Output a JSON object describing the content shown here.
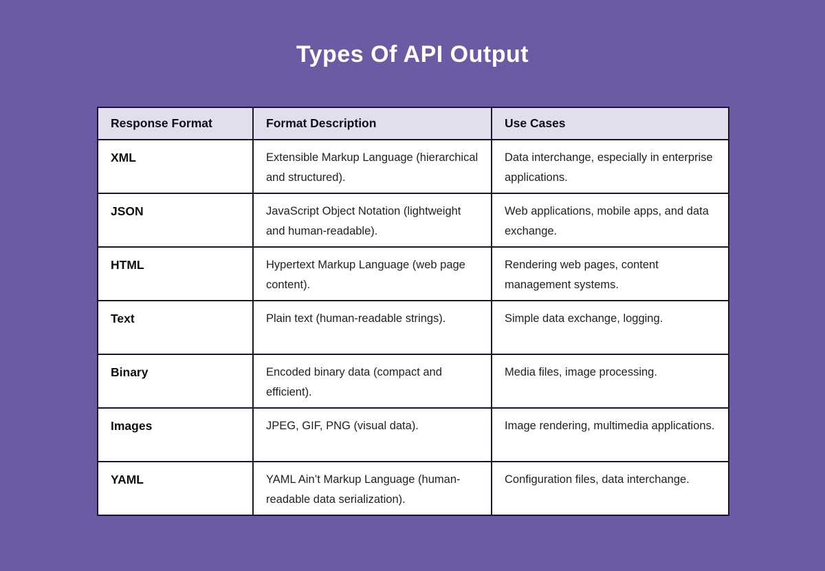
{
  "page": {
    "title": "Types Of API Output",
    "background_color": "#6b5aa4",
    "title_color": "#ffffff"
  },
  "table_style": {
    "header_bg": "#e2dfec",
    "cell_bg": "#ffffff",
    "border_color": "#1a142e"
  },
  "chart_data": {
    "type": "table",
    "title": "Types Of API Output",
    "columns": [
      "Response Format",
      "Format Description",
      "Use Cases"
    ],
    "rows": [
      [
        "XML",
        "Extensible Markup Language (hierarchical and structured).",
        "Data interchange, especially in enterprise applications."
      ],
      [
        "JSON",
        "JavaScript Object Notation (lightweight and human-readable).",
        "Web applications, mobile apps, and data exchange."
      ],
      [
        "HTML",
        "Hypertext Markup Language (web page content).",
        "Rendering web pages, content management systems."
      ],
      [
        "Text",
        "Plain text (human-readable strings).",
        "Simple data exchange, logging."
      ],
      [
        "Binary",
        "Encoded binary data (compact and efficient).",
        "Media files, image processing."
      ],
      [
        "Images",
        "JPEG, GIF, PNG (visual data).",
        "Image rendering, multimedia applications."
      ],
      [
        "YAML",
        "YAML Ain’t Markup Language (human-readable data serialization).",
        "Configuration files, data interchange."
      ]
    ]
  }
}
